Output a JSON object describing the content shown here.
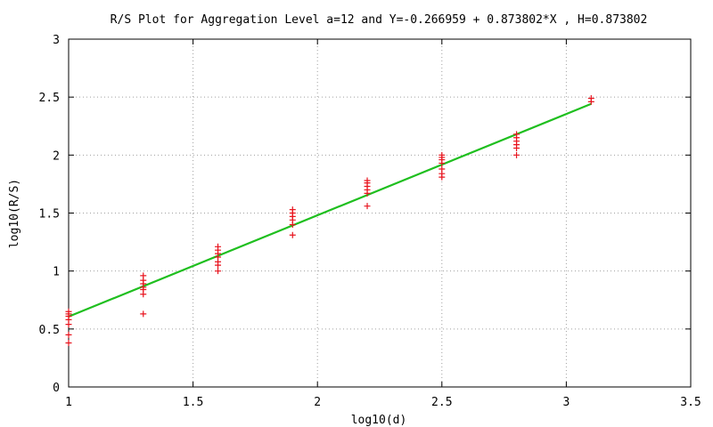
{
  "chart_data": {
    "type": "scatter",
    "title": "R/S Plot for Aggregation Level a=12 and Y=-0.266959 + 0.873802*X , H=0.873802",
    "xlabel": "log10(d)",
    "ylabel": "log10(R/S)",
    "xlim": [
      1,
      3.5
    ],
    "ylim": [
      0,
      3
    ],
    "xticks": [
      "1",
      "1.5",
      "2",
      "2.5",
      "3",
      "3.5"
    ],
    "yticks": [
      "0",
      "0.5",
      "1",
      "1.5",
      "2",
      "2.5",
      "3"
    ],
    "grid": true,
    "series": [
      {
        "kind": "points",
        "marker": "+",
        "color": "#e8141e",
        "points": [
          [
            1.0,
            0.38
          ],
          [
            1.0,
            0.45
          ],
          [
            1.0,
            0.54
          ],
          [
            1.0,
            0.58
          ],
          [
            1.0,
            0.61
          ],
          [
            1.0,
            0.63
          ],
          [
            1.0,
            0.65
          ],
          [
            1.3,
            0.63
          ],
          [
            1.3,
            0.8
          ],
          [
            1.3,
            0.84
          ],
          [
            1.3,
            0.86
          ],
          [
            1.3,
            0.89
          ],
          [
            1.3,
            0.92
          ],
          [
            1.3,
            0.96
          ],
          [
            1.6,
            1.0
          ],
          [
            1.6,
            1.05
          ],
          [
            1.6,
            1.08
          ],
          [
            1.6,
            1.12
          ],
          [
            1.6,
            1.15
          ],
          [
            1.6,
            1.18
          ],
          [
            1.6,
            1.21
          ],
          [
            1.9,
            1.31
          ],
          [
            1.9,
            1.4
          ],
          [
            1.9,
            1.44
          ],
          [
            1.9,
            1.47
          ],
          [
            1.9,
            1.5
          ],
          [
            1.9,
            1.53
          ],
          [
            2.2,
            1.56
          ],
          [
            2.2,
            1.67
          ],
          [
            2.2,
            1.7
          ],
          [
            2.2,
            1.73
          ],
          [
            2.2,
            1.76
          ],
          [
            2.2,
            1.78
          ],
          [
            2.5,
            1.81
          ],
          [
            2.5,
            1.84
          ],
          [
            2.5,
            1.88
          ],
          [
            2.5,
            1.93
          ],
          [
            2.5,
            1.96
          ],
          [
            2.5,
            1.98
          ],
          [
            2.5,
            2.0
          ],
          [
            2.8,
            2.0
          ],
          [
            2.8,
            2.06
          ],
          [
            2.8,
            2.09
          ],
          [
            2.8,
            2.12
          ],
          [
            2.8,
            2.15
          ],
          [
            2.8,
            2.18
          ],
          [
            3.1,
            2.46
          ],
          [
            3.1,
            2.49
          ]
        ]
      },
      {
        "kind": "fit-line",
        "color": "#1fbf1f",
        "intercept": -0.266959,
        "slope": 0.873802,
        "x_range": [
          1.0,
          3.1
        ]
      }
    ]
  }
}
